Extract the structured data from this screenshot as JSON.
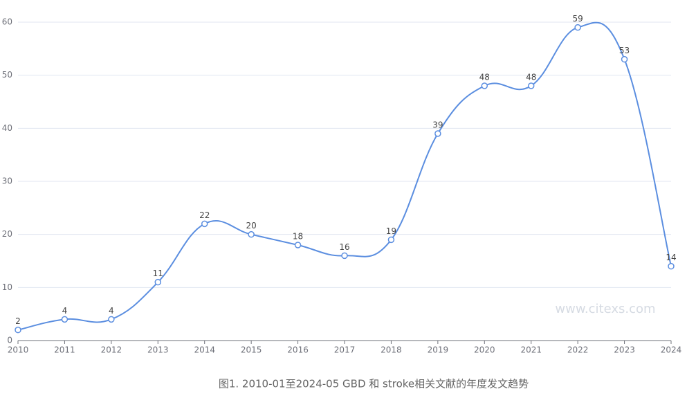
{
  "chart_data": {
    "type": "line",
    "categories": [
      "2010",
      "2011",
      "2012",
      "2013",
      "2014",
      "2015",
      "2016",
      "2017",
      "2018",
      "2019",
      "2020",
      "2021",
      "2022",
      "2023",
      "2024"
    ],
    "values": [
      2,
      4,
      4,
      11,
      22,
      20,
      18,
      16,
      19,
      39,
      48,
      48,
      59,
      53,
      14
    ],
    "color": "#5b8ee0",
    "ylim": [
      0,
      60
    ],
    "yticks": [
      0,
      10,
      20,
      30,
      40,
      50,
      60
    ],
    "grid": true,
    "watermark": "www.citexs.com",
    "caption": "图1. 2010-01至2024-05 GBD 和 stroke相关文献的年度发文趋势"
  }
}
